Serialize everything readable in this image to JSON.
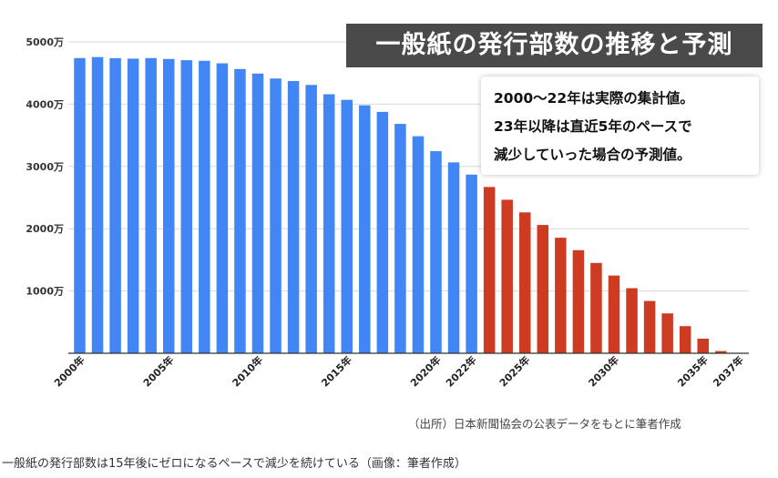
{
  "chart_data": {
    "type": "bar",
    "title": "一般紙の発行部数の推移と予測",
    "ylim": [
      0,
      5000
    ],
    "y_ticks": [
      {
        "value": 1000,
        "label": "1000万"
      },
      {
        "value": 2000,
        "label": "2000万"
      },
      {
        "value": 3000,
        "label": "3000万"
      },
      {
        "value": 4000,
        "label": "4000万"
      },
      {
        "value": 5000,
        "label": "5000万"
      }
    ],
    "x_ticks": [
      {
        "year": 2000,
        "label": "2000年"
      },
      {
        "year": 2005,
        "label": "2005年"
      },
      {
        "year": 2010,
        "label": "2010年"
      },
      {
        "year": 2015,
        "label": "2015年"
      },
      {
        "year": 2020,
        "label": "2020年"
      },
      {
        "year": 2022,
        "label": "2022年"
      },
      {
        "year": 2025,
        "label": "2025年"
      },
      {
        "year": 2030,
        "label": "2030年"
      },
      {
        "year": 2035,
        "label": "2035年"
      },
      {
        "year": 2037,
        "label": "2037年"
      }
    ],
    "categories": [
      2000,
      2001,
      2002,
      2003,
      2004,
      2005,
      2006,
      2007,
      2008,
      2009,
      2010,
      2011,
      2012,
      2013,
      2014,
      2015,
      2016,
      2017,
      2018,
      2019,
      2020,
      2021,
      2022,
      2023,
      2024,
      2025,
      2026,
      2027,
      2028,
      2029,
      2030,
      2031,
      2032,
      2033,
      2034,
      2035,
      2036,
      2037
    ],
    "series": [
      {
        "color": "#4285f4",
        "values": [
          4740,
          4756,
          4739,
          4731,
          4740,
          4726,
          4706,
          4696,
          4656,
          4564,
          4491,
          4412,
          4371,
          4309,
          4159,
          4069,
          3982,
          3876,
          3683,
          3485,
          3245,
          3065,
          2869,
          null,
          null,
          null,
          null,
          null,
          null,
          null,
          null,
          null,
          null,
          null,
          null,
          null,
          null,
          null
        ]
      },
      {
        "color": "#cc3b22",
        "values": [
          null,
          null,
          null,
          null,
          null,
          null,
          null,
          null,
          null,
          null,
          null,
          null,
          null,
          null,
          null,
          null,
          null,
          null,
          null,
          null,
          null,
          null,
          null,
          2670,
          2465,
          2262,
          2060,
          1855,
          1655,
          1450,
          1248,
          1045,
          840,
          640,
          435,
          235,
          35,
          null
        ]
      }
    ],
    "annotation_lines": [
      "2000〜22年は実際の集計値。",
      "23年以降は直近5年のペースで",
      "減少していった場合の予測値。"
    ]
  },
  "source": "（出所）日本新聞協会の公表データをもとに筆者作成",
  "caption": "一般紙の発行部数は15年後にゼロになるペースで減少を続けている（画像：筆者作成）",
  "colors": {
    "grid": "#d9d9d9",
    "axis": "#333333",
    "title_bg": "#4a4a4a"
  }
}
